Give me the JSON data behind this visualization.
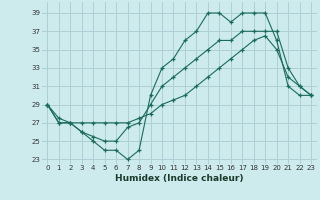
{
  "xlabel": "Humidex (Indice chaleur)",
  "background_color": "#cdeaed",
  "grid_color": "#aecfd4",
  "line_color": "#1a6b5a",
  "xlim": [
    -0.5,
    23.5
  ],
  "ylim": [
    22.5,
    40.2
  ],
  "xticks": [
    0,
    1,
    2,
    3,
    4,
    5,
    6,
    7,
    8,
    9,
    10,
    11,
    12,
    13,
    14,
    15,
    16,
    17,
    18,
    19,
    20,
    21,
    22,
    23
  ],
  "yticks": [
    23,
    25,
    27,
    29,
    31,
    33,
    35,
    37,
    39
  ],
  "line1_x": [
    0,
    1,
    2,
    3,
    4,
    5,
    6,
    7,
    8,
    9,
    10,
    11,
    12,
    13,
    14,
    15,
    16,
    17,
    18,
    19,
    20,
    21,
    22,
    23
  ],
  "line1_y": [
    29,
    27,
    27,
    26,
    25,
    24,
    24,
    23,
    24,
    30,
    33,
    34,
    36,
    37,
    39,
    39,
    38,
    39,
    39,
    39,
    36,
    31,
    30,
    30
  ],
  "line2_x": [
    0,
    1,
    2,
    3,
    4,
    5,
    6,
    7,
    8,
    9,
    10,
    11,
    12,
    13,
    14,
    15,
    16,
    17,
    18,
    19,
    20,
    21,
    22,
    23
  ],
  "line2_y": [
    29,
    27,
    27,
    26,
    25.5,
    25,
    25,
    26.5,
    27,
    29,
    31,
    32,
    33,
    34,
    35,
    36,
    36,
    37,
    37,
    37,
    37,
    33,
    31,
    30
  ],
  "line3_x": [
    0,
    1,
    2,
    3,
    4,
    5,
    6,
    7,
    8,
    9,
    10,
    11,
    12,
    13,
    14,
    15,
    16,
    17,
    18,
    19,
    20,
    21,
    22,
    23
  ],
  "line3_y": [
    29,
    27.5,
    27,
    27,
    27,
    27,
    27,
    27,
    27.5,
    28,
    29,
    29.5,
    30,
    31,
    32,
    33,
    34,
    35,
    36,
    36.5,
    35,
    32,
    31,
    30
  ]
}
